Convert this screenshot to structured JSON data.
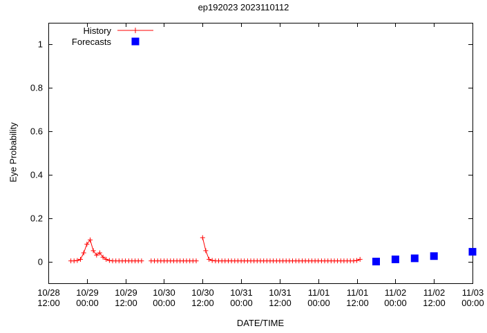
{
  "chart_data": {
    "type": "line",
    "title": "ep192023 2023110112",
    "xlabel": "DATE/TIME",
    "ylabel": "Eye Probability",
    "ylim": [
      -0.1,
      1.1
    ],
    "xlim_hours": [
      0,
      132
    ],
    "grid": false,
    "legend_position": "top-left",
    "background": "#ffffff",
    "axis_color": "#000000",
    "y_ticks": [
      {
        "value": 0,
        "label": "0"
      },
      {
        "value": 0.2,
        "label": "0.2"
      },
      {
        "value": 0.4,
        "label": "0.4"
      },
      {
        "value": 0.6,
        "label": "0.6"
      },
      {
        "value": 0.8,
        "label": "0.8"
      },
      {
        "value": 1,
        "label": "1"
      }
    ],
    "x_ticks": [
      {
        "hour": 0,
        "date": "10/28",
        "time": "12:00"
      },
      {
        "hour": 12,
        "date": "10/29",
        "time": "00:00"
      },
      {
        "hour": 24,
        "date": "10/29",
        "time": "12:00"
      },
      {
        "hour": 36,
        "date": "10/30",
        "time": "00:00"
      },
      {
        "hour": 48,
        "date": "10/30",
        "time": "12:00"
      },
      {
        "hour": 60,
        "date": "10/31",
        "time": "00:00"
      },
      {
        "hour": 72,
        "date": "10/31",
        "time": "12:00"
      },
      {
        "hour": 84,
        "date": "11/01",
        "time": "00:00"
      },
      {
        "hour": 96,
        "date": "11/01",
        "time": "12:00"
      },
      {
        "hour": 108,
        "date": "11/02",
        "time": "00:00"
      },
      {
        "hour": 120,
        "date": "11/02",
        "time": "12:00"
      },
      {
        "hour": 132,
        "date": "11/03",
        "time": "00:00"
      }
    ],
    "series": [
      {
        "name": "History",
        "style": "linespoints",
        "marker": "plus",
        "color": "#ff0000",
        "points": [
          [
            7,
            0.003
          ],
          [
            8,
            0.003
          ],
          [
            9,
            0.005
          ],
          [
            10,
            0.01
          ],
          [
            11,
            0.04
          ],
          [
            12,
            0.08
          ],
          [
            13,
            0.1
          ],
          [
            14,
            0.05
          ],
          [
            15,
            0.03
          ],
          [
            16,
            0.04
          ],
          [
            17,
            0.02
          ],
          [
            18,
            0.01
          ],
          [
            19,
            0.005
          ],
          [
            20,
            0.003
          ],
          [
            21,
            0.003
          ],
          [
            22,
            0.003
          ],
          [
            23,
            0.003
          ],
          [
            24,
            0.003
          ],
          [
            25,
            0.003
          ],
          [
            26,
            0.003
          ],
          [
            27,
            0.003
          ],
          [
            28,
            0.003
          ],
          [
            29,
            0.003
          ],
          [
            32,
            0.003
          ],
          [
            33,
            0.003
          ],
          [
            34,
            0.003
          ],
          [
            35,
            0.003
          ],
          [
            36,
            0.003
          ],
          [
            37,
            0.003
          ],
          [
            38,
            0.003
          ],
          [
            39,
            0.003
          ],
          [
            40,
            0.003
          ],
          [
            41,
            0.003
          ],
          [
            42,
            0.003
          ],
          [
            43,
            0.003
          ],
          [
            44,
            0.003
          ],
          [
            45,
            0.003
          ],
          [
            46,
            0.003
          ],
          [
            48,
            0.11
          ],
          [
            49,
            0.05
          ],
          [
            50,
            0.01
          ],
          [
            51,
            0.005
          ],
          [
            52,
            0.003
          ],
          [
            53,
            0.003
          ],
          [
            54,
            0.003
          ],
          [
            55,
            0.003
          ],
          [
            56,
            0.003
          ],
          [
            57,
            0.003
          ],
          [
            58,
            0.003
          ],
          [
            59,
            0.003
          ],
          [
            60,
            0.003
          ],
          [
            61,
            0.003
          ],
          [
            62,
            0.003
          ],
          [
            63,
            0.003
          ],
          [
            64,
            0.003
          ],
          [
            65,
            0.003
          ],
          [
            66,
            0.003
          ],
          [
            67,
            0.003
          ],
          [
            68,
            0.003
          ],
          [
            69,
            0.003
          ],
          [
            70,
            0.003
          ],
          [
            71,
            0.003
          ],
          [
            72,
            0.003
          ],
          [
            73,
            0.003
          ],
          [
            74,
            0.003
          ],
          [
            75,
            0.003
          ],
          [
            76,
            0.003
          ],
          [
            77,
            0.003
          ],
          [
            78,
            0.003
          ],
          [
            79,
            0.003
          ],
          [
            80,
            0.003
          ],
          [
            81,
            0.003
          ],
          [
            82,
            0.003
          ],
          [
            83,
            0.003
          ],
          [
            84,
            0.003
          ],
          [
            85,
            0.003
          ],
          [
            86,
            0.003
          ],
          [
            87,
            0.003
          ],
          [
            88,
            0.003
          ],
          [
            89,
            0.003
          ],
          [
            90,
            0.003
          ],
          [
            91,
            0.003
          ],
          [
            92,
            0.003
          ],
          [
            93,
            0.003
          ],
          [
            94,
            0.003
          ],
          [
            95,
            0.003
          ],
          [
            96,
            0.005
          ],
          [
            97,
            0.01
          ]
        ]
      },
      {
        "name": "Forecasts",
        "style": "points",
        "marker": "filled-square",
        "color": "#0000ff",
        "points": [
          [
            102,
            0.0
          ],
          [
            108,
            0.01
          ],
          [
            114,
            0.015
          ],
          [
            120,
            0.025
          ],
          [
            132,
            0.045
          ]
        ]
      }
    ]
  }
}
